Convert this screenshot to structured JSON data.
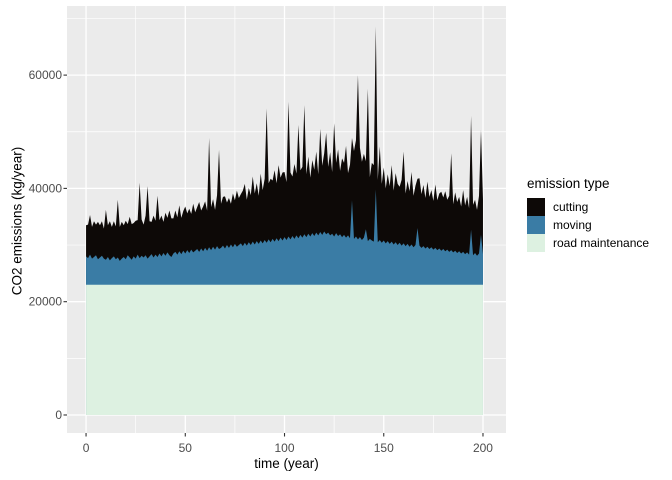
{
  "figure": {
    "background": "#FFFFFF",
    "panel_background": "#EBEBEB",
    "gridline_color": "#FFFFFF",
    "axis_text_color": "#4D4D4D",
    "tick_mark_color": "#333333"
  },
  "axes": {
    "x": {
      "title": "time (year)",
      "tick_labels": [
        "0",
        "50",
        "100",
        "150",
        "200"
      ],
      "tick_values": [
        0,
        50,
        100,
        150,
        200
      ],
      "minor_values": [
        25,
        75,
        125,
        175
      ],
      "lim": [
        -9.6,
        211.6
      ]
    },
    "y": {
      "title": "CO2 emissions (kg/year)",
      "tick_labels": [
        "0",
        "20000",
        "40000",
        "60000"
      ],
      "tick_values": [
        0,
        20000,
        40000,
        60000
      ],
      "minor_values": [
        10000,
        30000,
        50000,
        70000
      ],
      "lim": [
        -3180,
        72200
      ]
    }
  },
  "legend": {
    "title": "emission type",
    "entries": [
      {
        "label": "cutting",
        "color": "#0D0907"
      },
      {
        "label": "moving",
        "color": "#3A7CA5"
      },
      {
        "label": "road maintenance",
        "color": "#DDF1E1"
      }
    ]
  },
  "chart_data": {
    "type": "area",
    "stacked": true,
    "title": "",
    "xlabel": "time (year)",
    "ylabel": "CO2 emissions (kg/year)",
    "legend_position": "right",
    "grid": true,
    "x_start": 0,
    "x_step": 1,
    "n_points": 201,
    "xlim": [
      0,
      200
    ],
    "ylim": [
      0,
      72200
    ],
    "stack_order_bottom_to_top": [
      "road maintenance",
      "moving",
      "cutting"
    ],
    "series": [
      {
        "name": "road maintenance",
        "color": "#DDF1E1",
        "values": [
          23000,
          23000,
          23000,
          23000,
          23000,
          23000,
          23000,
          23000,
          23000,
          23000,
          23000,
          23000,
          23000,
          23000,
          23000,
          23000,
          23000,
          23000,
          23000,
          23000,
          23000,
          23000,
          23000,
          23000,
          23000,
          23000,
          23000,
          23000,
          23000,
          23000,
          23000,
          23000,
          23000,
          23000,
          23000,
          23000,
          23000,
          23000,
          23000,
          23000,
          23000,
          23000,
          23000,
          23000,
          23000,
          23000,
          23000,
          23000,
          23000,
          23000,
          23000,
          23000,
          23000,
          23000,
          23000,
          23000,
          23000,
          23000,
          23000,
          23000,
          23000,
          23000,
          23000,
          23000,
          23000,
          23000,
          23000,
          23000,
          23000,
          23000,
          23000,
          23000,
          23000,
          23000,
          23000,
          23000,
          23000,
          23000,
          23000,
          23000,
          23000,
          23000,
          23000,
          23000,
          23000,
          23000,
          23000,
          23000,
          23000,
          23000,
          23000,
          23000,
          23000,
          23000,
          23000,
          23000,
          23000,
          23000,
          23000,
          23000,
          23000,
          23000,
          23000,
          23000,
          23000,
          23000,
          23000,
          23000,
          23000,
          23000,
          23000,
          23000,
          23000,
          23000,
          23000,
          23000,
          23000,
          23000,
          23000,
          23000,
          23000,
          23000,
          23000,
          23000,
          23000,
          23000,
          23000,
          23000,
          23000,
          23000,
          23000,
          23000,
          23000,
          23000,
          23000,
          23000,
          23000,
          23000,
          23000,
          23000,
          23000,
          23000,
          23000,
          23000,
          23000,
          23000,
          23000,
          23000,
          23000,
          23000,
          23000,
          23000,
          23000,
          23000,
          23000,
          23000,
          23000,
          23000,
          23000,
          23000,
          23000,
          23000,
          23000,
          23000,
          23000,
          23000,
          23000,
          23000,
          23000,
          23000,
          23000,
          23000,
          23000,
          23000,
          23000,
          23000,
          23000,
          23000,
          23000,
          23000,
          23000,
          23000,
          23000,
          23000,
          23000,
          23000,
          23000,
          23000,
          23000,
          23000,
          23000,
          23000,
          23000,
          23000,
          23000,
          23000,
          23000,
          23000,
          23000,
          23000,
          23000
        ]
      },
      {
        "name": "moving",
        "color": "#3A7CA5",
        "values": [
          5000,
          4700,
          5300,
          4600,
          4900,
          5200,
          4500,
          4800,
          5100,
          4600,
          4400,
          4900,
          4300,
          4700,
          5000,
          4500,
          4800,
          4200,
          4600,
          4900,
          4500,
          5200,
          4800,
          4400,
          5000,
          4600,
          5300,
          4700,
          5100,
          4800,
          5200,
          4600,
          5000,
          5400,
          4800,
          5300,
          4900,
          5500,
          5000,
          5600,
          5100,
          5700,
          5200,
          4900,
          5500,
          5800,
          5300,
          5900,
          5400,
          6000,
          5500,
          6100,
          5600,
          6200,
          5700,
          6000,
          6300,
          5800,
          6400,
          5900,
          6500,
          6000,
          6600,
          6100,
          6700,
          6200,
          6800,
          6300,
          6500,
          6900,
          6400,
          7000,
          6500,
          7100,
          6600,
          7200,
          6700,
          7000,
          7300,
          6800,
          7400,
          6900,
          7500,
          7000,
          7600,
          7100,
          7700,
          7200,
          7800,
          7300,
          7900,
          7400,
          8000,
          7500,
          8100,
          7600,
          8200,
          7700,
          8300,
          7800,
          8400,
          7900,
          8500,
          8000,
          8600,
          8100,
          8700,
          8200,
          8800,
          8300,
          8900,
          8400,
          9000,
          8500,
          9100,
          8600,
          9200,
          8700,
          9300,
          8800,
          9400,
          8900,
          9200,
          8700,
          9000,
          8500,
          9100,
          8600,
          8900,
          8400,
          8800,
          8300,
          8700,
          8200,
          14900,
          8100,
          8500,
          8000,
          8400,
          7900,
          8300,
          9800,
          7700,
          8100,
          7800,
          7600,
          16800,
          7500,
          7900,
          7400,
          7800,
          7300,
          7700,
          7200,
          7600,
          7100,
          7500,
          7000,
          7400,
          6900,
          7300,
          6800,
          7200,
          6700,
          7100,
          6600,
          7000,
          10000,
          6900,
          6500,
          6800,
          6400,
          6700,
          6300,
          6600,
          6200,
          6500,
          6100,
          6400,
          6000,
          6300,
          5900,
          6200,
          5800,
          6100,
          5700,
          6000,
          5600,
          5900,
          5500,
          5800,
          5400,
          5700,
          5300,
          9700,
          5200,
          5600,
          5100,
          5500,
          8800,
          5400
        ]
      },
      {
        "name": "cutting",
        "color": "#0D0907",
        "values": [
          5500,
          5900,
          7000,
          5600,
          6300,
          5400,
          6600,
          5700,
          6100,
          5300,
          8800,
          5600,
          6900,
          5500,
          6200,
          5800,
          10200,
          6000,
          6500,
          5600,
          6800,
          5500,
          7200,
          6300,
          5900,
          6700,
          6100,
          13300,
          6400,
          5800,
          7000,
          12800,
          6200,
          5700,
          7400,
          6000,
          10800,
          5900,
          7200,
          5500,
          7600,
          6100,
          7900,
          6800,
          6200,
          7300,
          6600,
          8100,
          6400,
          7000,
          8300,
          6500,
          7800,
          6300,
          8600,
          6800,
          7400,
          8800,
          6700,
          7900,
          8200,
          7100,
          19300,
          7600,
          8400,
          7000,
          9000,
          17500,
          7800,
          8600,
          9200,
          7500,
          8800,
          7200,
          9500,
          7700,
          9900,
          8300,
          8700,
          9800,
          10400,
          8100,
          9600,
          8800,
          11500,
          9000,
          10200,
          8500,
          11800,
          9400,
          10800,
          23700,
          9900,
          11200,
          10300,
          12600,
          9700,
          13400,
          10600,
          12000,
          11500,
          10200,
          23800,
          11800,
          10500,
          13200,
          10900,
          20000,
          11400,
          12500,
          22800,
          11100,
          13600,
          10400,
          12900,
          11700,
          14300,
          10800,
          18200,
          12200,
          13800,
          17900,
          11600,
          14700,
          10900,
          20000,
          12400,
          15300,
          11200,
          13900,
          12700,
          16200,
          11000,
          13000,
          11000,
          15500,
          17000,
          29000,
          15800,
          13800,
          14800,
          12000,
          26900,
          10900,
          13700,
          13500,
          28800,
          11000,
          16500,
          10400,
          12900,
          9700,
          11800,
          10200,
          13500,
          9500,
          12200,
          10800,
          9900,
          11600,
          16200,
          9300,
          11100,
          9800,
          12800,
          9100,
          10500,
          8700,
          11900,
          9500,
          10800,
          8900,
          11500,
          9200,
          10100,
          8600,
          11200,
          8800,
          9700,
          10400,
          9100,
          10600,
          8800,
          9900,
          17100,
          8500,
          10300,
          9000,
          9600,
          8300,
          10900,
          8600,
          9800,
          8200,
          20100,
          8900,
          9400,
          8100,
          10200,
          18500,
          9700
        ]
      }
    ]
  }
}
